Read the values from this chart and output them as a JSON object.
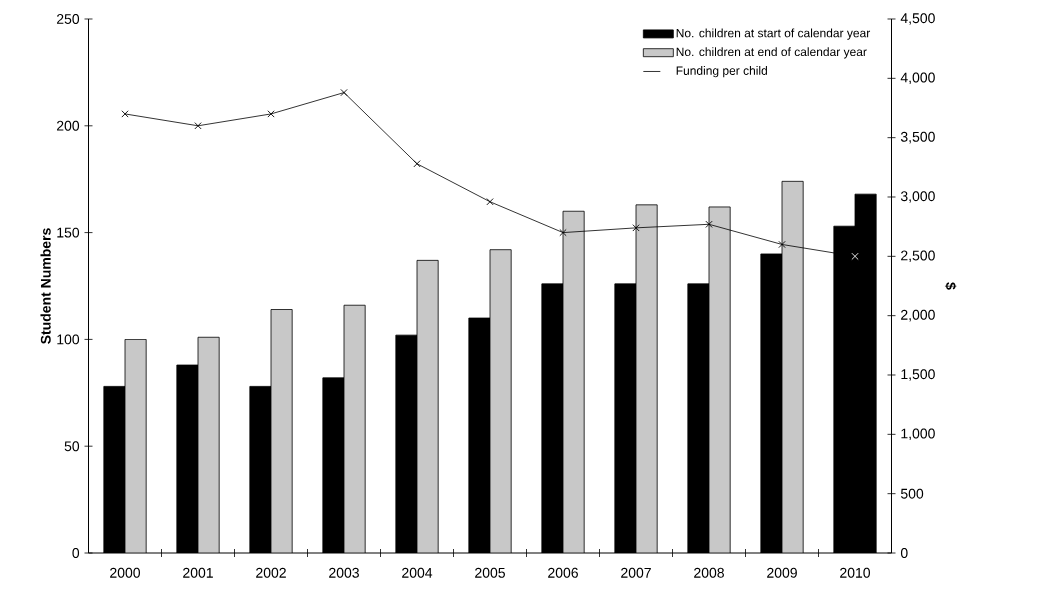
{
  "chart_data": {
    "type": "bar",
    "categories": [
      "2000",
      "2001",
      "2002",
      "2003",
      "2004",
      "2005",
      "2006",
      "2007",
      "2008",
      "2009",
      "2010"
    ],
    "ylabel": "Student Numbers",
    "y2label": "$",
    "ylim": [
      0,
      250
    ],
    "yticks": [
      0,
      50,
      100,
      150,
      200,
      250
    ],
    "y2lim": [
      0,
      4500
    ],
    "y2ticks": [
      0,
      500,
      {
        "value": 1000,
        "label": "1,000"
      },
      {
        "value": 1500,
        "label": "1,500"
      },
      {
        "value": 2000,
        "label": "2,000"
      },
      {
        "value": 2500,
        "label": "2,500"
      },
      {
        "value": 3000,
        "label": "3,000"
      },
      {
        "value": 3500,
        "label": "3,500"
      },
      {
        "value": 4000,
        "label": "4,000"
      },
      {
        "value": 4500,
        "label": "4,500"
      }
    ],
    "legend": "top right",
    "series": [
      {
        "name": "No. children at start of calendar year",
        "color": "#000000",
        "values": [
          78,
          88,
          78,
          82,
          102,
          110,
          126,
          126,
          126,
          140,
          153
        ]
      },
      {
        "name": "No. children at end of calendar year",
        "color": "#c8c8c8",
        "colors": [
          "#c8c8c8",
          "#c8c8c8",
          "#c8c8c8",
          "#c8c8c8",
          "#c8c8c8",
          "#c8c8c8",
          "#c8c8c8",
          "#c8c8c8",
          "#c8c8c8",
          "#c8c8c8",
          "#000000"
        ],
        "values": [
          100,
          101,
          114,
          116,
          137,
          142,
          160,
          163,
          162,
          174,
          168
        ]
      },
      {
        "name": "Funding per child",
        "type": "line",
        "axis": "y2",
        "color": "#000000",
        "colors": [
          "#000000",
          "#000000",
          "#000000",
          "#000000",
          "#000000",
          "#000000",
          "#000000",
          "#000000",
          "#000000",
          "#000000",
          "#ffffff"
        ],
        "marker": "cross",
        "values": [
          3700,
          3600,
          3700,
          3880,
          3280,
          2960,
          2700,
          2740,
          2770,
          2600,
          2500
        ]
      }
    ]
  }
}
